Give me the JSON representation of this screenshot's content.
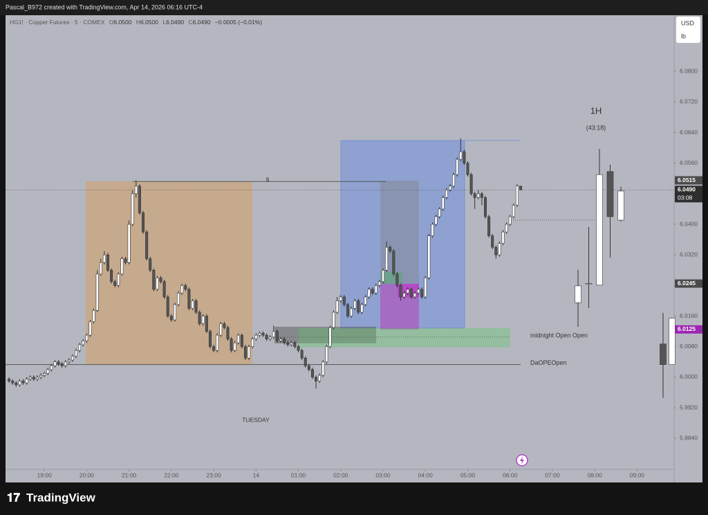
{
  "header": {
    "title": "Pascal_B972 created with TradingView.com, Apr 14, 2026 06:16 UTC-4"
  },
  "footer": {
    "brand": "TradingView"
  },
  "chart_data": {
    "type": "candlestick",
    "symbol": "HG1! · Copper Futures · 5 · COMEX",
    "ohlc_legend": [
      {
        "key": "O",
        "text": "6.0500"
      },
      {
        "key": "H",
        "text": "6.0500"
      },
      {
        "key": "L",
        "text": "6.0490"
      },
      {
        "key": "C",
        "text": "6.0490"
      }
    ],
    "change": "−0.0005 (−0.01%)",
    "currency": "USD",
    "unit": "lb",
    "up_color": "#ffffff",
    "down_color": "#555555",
    "wick_color": "#333333",
    "xlim": [
      -1,
      188.5
    ],
    "xticks": [
      {
        "value": 10,
        "label": "19:00"
      },
      {
        "value": 22,
        "label": "20:00"
      },
      {
        "value": 34,
        "label": "21:00"
      },
      {
        "value": 46,
        "label": "22:00"
      },
      {
        "value": 58,
        "label": "23:00"
      },
      {
        "value": 70,
        "label": "14"
      },
      {
        "value": 82,
        "label": "01:00"
      },
      {
        "value": 94,
        "label": "02:00"
      },
      {
        "value": 106,
        "label": "03:00"
      },
      {
        "value": 118,
        "label": "04:00"
      },
      {
        "value": 130,
        "label": "05:00"
      },
      {
        "value": 142,
        "label": "06:00"
      },
      {
        "value": 154,
        "label": "07:00"
      },
      {
        "value": 166,
        "label": "08:00"
      },
      {
        "value": 178,
        "label": "09:00"
      }
    ],
    "ylim": [
      5.9759,
      6.0947
    ],
    "yticks": [
      {
        "value": 5.984,
        "label": "5.9840"
      },
      {
        "value": 5.992,
        "label": "5.9920"
      },
      {
        "value": 6.0,
        "label": "6.0000"
      },
      {
        "value": 6.008,
        "label": "6.0080"
      },
      {
        "value": 6.016,
        "label": "6.0160"
      },
      {
        "value": 6.024,
        "label": "6.0240"
      },
      {
        "value": 6.032,
        "label": "6.0320"
      },
      {
        "value": 6.04,
        "label": "6.0400"
      },
      {
        "value": 6.048,
        "label": "6.0480"
      },
      {
        "value": 6.056,
        "label": "6.0560"
      },
      {
        "value": 6.064,
        "label": "6.0640"
      },
      {
        "value": 6.072,
        "label": "6.0720"
      },
      {
        "value": 6.08,
        "label": "6.0800"
      }
    ],
    "open": [
      5.9995,
      5.999,
      5.9985,
      5.998,
      5.999,
      5.9985,
      5.9995,
      6.0,
      5.9995,
      6.0,
      6.0005,
      6.001,
      6.002,
      6.003,
      6.004,
      6.0035,
      6.003,
      6.004,
      6.0045,
      6.0055,
      6.007,
      6.0085,
      6.0095,
      6.011,
      6.0145,
      6.0175,
      6.027,
      6.03,
      6.032,
      6.028,
      6.025,
      6.024,
      6.027,
      6.031,
      6.03,
      6.04,
      6.048,
      6.05,
      6.043,
      6.038,
      6.031,
      6.028,
      6.023,
      6.026,
      6.025,
      6.021,
      6.016,
      6.015,
      6.019,
      6.022,
      6.024,
      6.023,
      6.018,
      6.02,
      6.017,
      6.014,
      6.016,
      6.012,
      6.008,
      6.007,
      6.011,
      6.014,
      6.013,
      6.01,
      6.007,
      6.009,
      6.011,
      6.008,
      6.005,
      6.008,
      6.01,
      6.011,
      6.0115,
      6.011,
      6.01,
      6.0105,
      6.012,
      6.0095,
      6.01,
      6.009,
      6.0085,
      6.009,
      6.008,
      6.007,
      6.005,
      6.003,
      6.002,
      6.0,
      5.999,
      6.0005,
      6.004,
      6.008,
      6.013,
      6.017,
      6.02,
      6.021,
      6.019,
      6.016,
      6.018,
      6.02,
      6.017,
      6.019,
      6.021,
      6.023,
      6.022,
      6.024,
      6.025,
      6.028,
      6.034,
      6.033,
      6.027,
      6.024,
      6.021,
      6.022,
      6.023,
      6.021,
      6.022,
      6.023,
      6.021,
      6.026,
      6.037,
      6.04,
      6.042,
      6.044,
      6.047,
      6.049,
      6.05,
      6.053,
      6.057,
      6.059,
      6.056,
      6.053,
      6.048,
      6.047,
      6.048,
      6.047,
      6.042,
      6.037,
      6.034,
      6.032,
      6.035,
      6.038,
      6.04,
      6.042,
      6.045,
      6.05
    ],
    "high": [
      6.0,
      5.9995,
      5.999,
      5.9995,
      5.9995,
      6.0,
      6.0005,
      6.0005,
      6.0005,
      6.001,
      6.0015,
      6.0025,
      6.0035,
      6.0045,
      6.0045,
      6.004,
      6.0045,
      6.005,
      6.006,
      6.0075,
      6.009,
      6.01,
      6.0115,
      6.015,
      6.018,
      6.028,
      6.031,
      6.033,
      6.0325,
      6.0285,
      6.0255,
      6.0275,
      6.0315,
      6.0315,
      6.041,
      6.049,
      6.0515,
      6.0505,
      6.0435,
      6.0385,
      6.0315,
      6.0285,
      6.0265,
      6.0265,
      6.0255,
      6.0215,
      6.0165,
      6.0195,
      6.0225,
      6.0245,
      6.0245,
      6.0235,
      6.0205,
      6.0205,
      6.0175,
      6.0165,
      6.0165,
      6.0125,
      6.0085,
      6.0115,
      6.0145,
      6.0145,
      6.0135,
      6.0105,
      6.0095,
      6.0115,
      6.0115,
      6.0085,
      6.0085,
      6.0105,
      6.0115,
      6.012,
      6.012,
      6.0115,
      6.011,
      6.0135,
      6.0125,
      6.0105,
      6.0105,
      6.0095,
      6.0095,
      6.0095,
      6.0085,
      6.0075,
      6.0055,
      6.0035,
      6.0025,
      6.0005,
      6.001,
      6.0045,
      6.0085,
      6.0135,
      6.0175,
      6.021,
      6.0215,
      6.0215,
      6.0195,
      6.0185,
      6.0205,
      6.0205,
      6.0195,
      6.0215,
      6.0235,
      6.0235,
      6.0245,
      6.0255,
      6.0285,
      6.0355,
      6.0345,
      6.0335,
      6.0275,
      6.0245,
      6.0225,
      6.0235,
      6.0235,
      6.0225,
      6.0235,
      6.0235,
      6.0265,
      6.0375,
      6.0405,
      6.0425,
      6.0445,
      6.0475,
      6.0495,
      6.0505,
      6.0535,
      6.0575,
      6.0625,
      6.0595,
      6.0565,
      6.0535,
      6.0485,
      6.049,
      6.0485,
      6.0475,
      6.0425,
      6.0375,
      6.0345,
      6.0355,
      6.0385,
      6.0405,
      6.0425,
      6.0455,
      6.0505,
      6.05
    ],
    "low": [
      5.9985,
      5.998,
      5.9975,
      5.9975,
      5.998,
      5.998,
      5.999,
      5.999,
      5.999,
      5.9995,
      6.0,
      6.0005,
      6.0015,
      6.0025,
      6.003,
      6.0025,
      6.0025,
      6.0035,
      6.004,
      6.005,
      6.0065,
      6.008,
      6.009,
      6.0105,
      6.014,
      6.017,
      6.0265,
      6.0295,
      6.0275,
      6.0245,
      6.0235,
      6.0235,
      6.0265,
      6.0295,
      6.0295,
      6.0395,
      6.047,
      6.0425,
      6.0375,
      6.0305,
      6.0275,
      6.0225,
      6.0225,
      6.0245,
      6.0205,
      6.0155,
      6.0145,
      6.0145,
      6.0185,
      6.0215,
      6.0225,
      6.0175,
      6.0175,
      6.0165,
      6.0135,
      6.0135,
      6.0115,
      6.0075,
      6.0065,
      6.0065,
      6.0105,
      6.0125,
      6.0095,
      6.0065,
      6.0065,
      6.0085,
      6.0075,
      6.0045,
      6.0045,
      6.0075,
      6.0095,
      6.0105,
      6.0105,
      6.0095,
      6.0095,
      6.01,
      6.009,
      6.009,
      6.0085,
      6.008,
      6.008,
      6.0075,
      6.0065,
      6.0045,
      6.0025,
      6.0015,
      5.9995,
      5.997,
      5.9985,
      6.0,
      6.0035,
      6.0075,
      6.0125,
      6.0165,
      6.0195,
      6.0185,
      6.0155,
      6.0155,
      6.0175,
      6.0165,
      6.0165,
      6.0185,
      6.0205,
      6.0215,
      6.0215,
      6.0235,
      6.0245,
      6.0275,
      6.0325,
      6.0265,
      6.0235,
      6.02,
      6.0205,
      6.0215,
      6.0205,
      6.0205,
      6.0215,
      6.0205,
      6.0205,
      6.0255,
      6.0365,
      6.0395,
      6.0415,
      6.0435,
      6.0465,
      6.0485,
      6.0495,
      6.0525,
      6.0565,
      6.0555,
      6.0525,
      6.0475,
      6.044,
      6.0465,
      6.045,
      6.0415,
      6.0365,
      6.0335,
      6.031,
      6.0315,
      6.0345,
      6.0375,
      6.0395,
      6.0415,
      6.0445,
      6.049
    ],
    "close": [
      5.999,
      5.9985,
      5.998,
      5.999,
      5.9985,
      5.9995,
      6.0,
      5.9995,
      6.0,
      6.0005,
      6.001,
      6.002,
      6.003,
      6.004,
      6.0035,
      6.003,
      6.004,
      6.0045,
      6.0055,
      6.007,
      6.0085,
      6.0095,
      6.011,
      6.0145,
      6.0175,
      6.027,
      6.03,
      6.032,
      6.028,
      6.025,
      6.024,
      6.027,
      6.031,
      6.03,
      6.04,
      6.048,
      6.05,
      6.043,
      6.038,
      6.031,
      6.028,
      6.023,
      6.026,
      6.025,
      6.021,
      6.016,
      6.015,
      6.019,
      6.022,
      6.024,
      6.023,
      6.018,
      6.02,
      6.017,
      6.014,
      6.016,
      6.012,
      6.008,
      6.007,
      6.011,
      6.014,
      6.013,
      6.01,
      6.007,
      6.009,
      6.011,
      6.008,
      6.005,
      6.008,
      6.01,
      6.011,
      6.0115,
      6.011,
      6.01,
      6.0105,
      6.012,
      6.0095,
      6.01,
      6.009,
      6.0085,
      6.009,
      6.008,
      6.007,
      6.005,
      6.003,
      6.002,
      6.0,
      5.999,
      6.0005,
      6.004,
      6.008,
      6.013,
      6.017,
      6.02,
      6.021,
      6.019,
      6.016,
      6.018,
      6.02,
      6.017,
      6.019,
      6.021,
      6.023,
      6.022,
      6.024,
      6.025,
      6.028,
      6.034,
      6.033,
      6.027,
      6.024,
      6.021,
      6.022,
      6.023,
      6.021,
      6.022,
      6.023,
      6.021,
      6.026,
      6.037,
      6.04,
      6.042,
      6.044,
      6.047,
      6.049,
      6.05,
      6.053,
      6.057,
      6.059,
      6.056,
      6.053,
      6.048,
      6.047,
      6.048,
      6.047,
      6.042,
      6.037,
      6.034,
      6.032,
      6.035,
      6.038,
      6.04,
      6.042,
      6.045,
      6.05,
      6.049
    ],
    "htf_title": "1H",
    "htf_timer": "(43:18)",
    "htf_candles": {
      "open": [
        6.0195,
        6.0245,
        6.0241,
        6.0538,
        6.0411
      ],
      "high": [
        6.0281,
        6.0393,
        6.0597,
        6.0556,
        6.0498
      ],
      "low": [
        6.0132,
        6.0181,
        6.0241,
        6.0313,
        6.0407
      ],
      "close": [
        6.0239,
        6.0245,
        6.053,
        6.042,
        6.0487
      ]
    },
    "side_candles": {
      "open": [
        6.0087,
        6.0033
      ],
      "high": [
        6.0168,
        6.0154
      ],
      "low": [
        5.9946,
        6.0033
      ],
      "close": [
        6.0033,
        6.0154
      ]
    },
    "levels": [
      {
        "label": "$",
        "value": 6.0512
      },
      {
        "label": "midnight Open Open",
        "value": 6.0105
      },
      {
        "label": "DaOPEOpen",
        "value": 6.0033
      }
    ],
    "session_label": "TUESDAY",
    "price_labels": [
      {
        "value": 6.0515,
        "label": "6.0515",
        "color": "#4a4a4a"
      },
      {
        "value": 6.049,
        "label": "6.0490",
        "countdown": "03:08",
        "color": "#2e2e2e"
      },
      {
        "value": 6.0245,
        "label": "6.0245",
        "color": "#4a4a4a"
      },
      {
        "value": 6.0125,
        "label": "6.0125",
        "color": "#9c27b0"
      }
    ]
  }
}
